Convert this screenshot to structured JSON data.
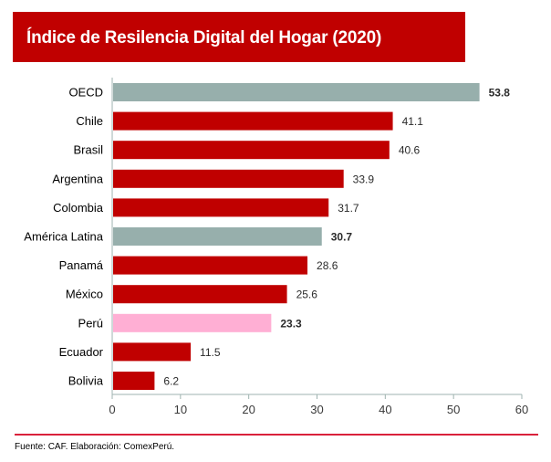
{
  "chart_data": {
    "type": "bar",
    "orientation": "horizontal",
    "title": "Índice de Resilencia Digital del Hogar (2020)",
    "categories": [
      "OECD",
      "Chile",
      "Brasil",
      "Argentina",
      "Colombia",
      "América Latina",
      "Panamá",
      "México",
      "Perú",
      "Ecuador",
      "Bolivia"
    ],
    "values": [
      53.8,
      41.1,
      40.6,
      33.9,
      31.7,
      30.7,
      28.6,
      25.6,
      23.3,
      11.5,
      6.2
    ],
    "labels": [
      "53.8",
      "41.1",
      "40.6",
      "33.9",
      "31.7",
      "30.7",
      "28.6",
      "25.6",
      "23.3",
      "11.5",
      "6.2"
    ],
    "highlight": [
      "gray",
      "red",
      "red",
      "red",
      "red",
      "gray",
      "red",
      "red",
      "pink",
      "red",
      "red"
    ],
    "bold_labels": [
      true,
      false,
      false,
      false,
      false,
      true,
      false,
      false,
      true,
      false,
      false
    ],
    "colors": {
      "red": "#c00000",
      "gray": "#97afac",
      "pink": "#ffafd4",
      "label": "#2b2b2b"
    },
    "xticks": [
      "0",
      "10",
      "20",
      "30",
      "40",
      "50",
      "60"
    ],
    "xlim": [
      0,
      60
    ],
    "xlabel": "",
    "ylabel": "",
    "grid": false
  },
  "title": "Índice de Resilencia Digital del Hogar (2020)",
  "source": "Fuente: CAF. Elaboración: ComexPerú."
}
